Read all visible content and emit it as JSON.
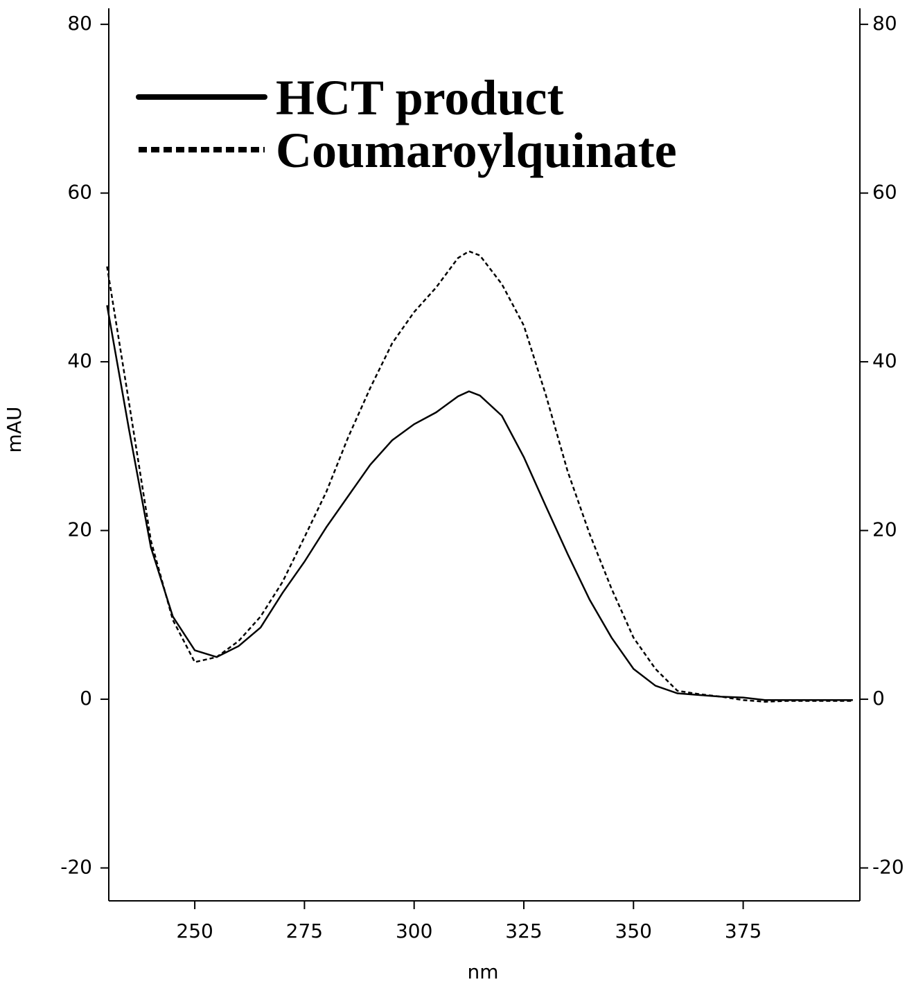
{
  "chart_data": {
    "type": "line",
    "xlabel": "nm",
    "ylabel": "mAU",
    "x": [
      230,
      235,
      240,
      245,
      250,
      255,
      260,
      265,
      270,
      275,
      280,
      285,
      290,
      295,
      300,
      305,
      310,
      312.5,
      315,
      320,
      325,
      330,
      335,
      340,
      345,
      350,
      355,
      360,
      365,
      370,
      375,
      380,
      385,
      390,
      395,
      400
    ],
    "series": [
      {
        "name": "HCT product",
        "color": "#000000",
        "dash": "solid",
        "values": [
          46.7,
          32,
          18,
          9.8,
          5.8,
          5,
          6.3,
          8.5,
          12.6,
          16.3,
          20.4,
          24.1,
          27.8,
          30.7,
          32.6,
          34,
          35.9,
          36.5,
          36,
          33.6,
          28.7,
          22.9,
          17.2,
          11.8,
          7.3,
          3.6,
          1.6,
          0.7,
          0.5,
          0.3,
          0.2,
          -0.1,
          -0.1,
          -0.1,
          -0.1,
          -0.1
        ]
      },
      {
        "name": "Coumaroylquinate",
        "color": "#000000",
        "dash": "dotted",
        "values": [
          51.3,
          35.2,
          18.8,
          9.4,
          4.4,
          5,
          6.9,
          9.8,
          13.9,
          19.2,
          24.6,
          31.1,
          36.9,
          42.2,
          45.9,
          48.8,
          52.3,
          53.1,
          52.6,
          49.2,
          44.3,
          36.1,
          27,
          19.6,
          13.1,
          7.3,
          3.6,
          1,
          0.6,
          0.3,
          -0.1,
          -0.3,
          -0.2,
          -0.2,
          -0.2,
          -0.2
        ]
      }
    ],
    "xlim": [
      230.4,
      401.6
    ],
    "xticks": [
      250,
      275,
      300,
      325,
      350,
      375
    ],
    "ylim": [
      -23.9,
      81.9
    ],
    "yticks": [
      -20,
      0,
      20,
      40,
      60,
      80
    ],
    "y2lim": [
      -23.9,
      81.9
    ],
    "y2ticks": [
      -20,
      0,
      20,
      40,
      60,
      80
    ],
    "legend": "upper left",
    "grid": false
  }
}
